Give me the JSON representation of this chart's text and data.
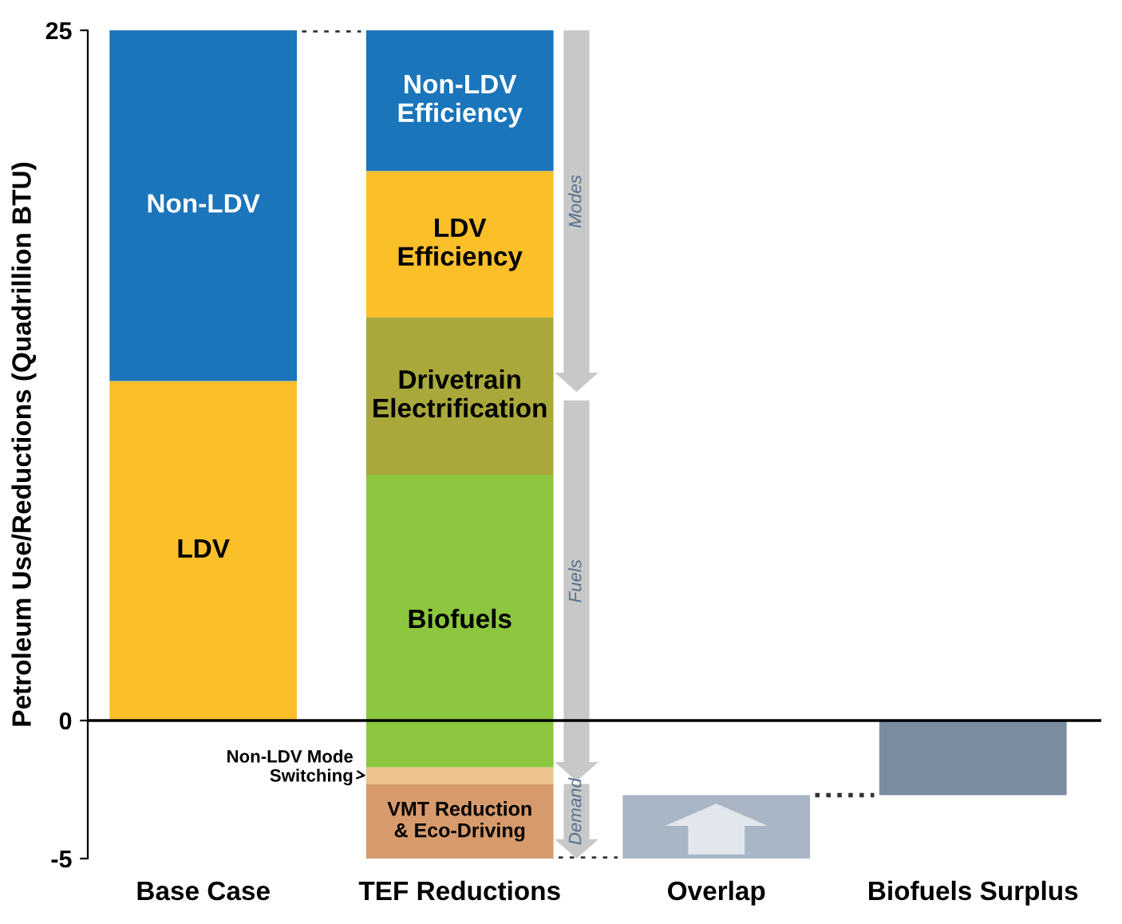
{
  "chart_data": {
    "type": "bar",
    "ylabel": "Petroleum Use/Reductions (Quadrillion BTU)",
    "categories": [
      "Base Case",
      "TEF Reductions",
      "Overlap",
      "Biofuels Surplus"
    ],
    "series": [
      {
        "name": "LDV",
        "color": "#fbbf2a",
        "values": [
          12.3,
          null,
          null,
          null
        ],
        "base": [
          0,
          null,
          null,
          null
        ]
      },
      {
        "name": "Non-LDV",
        "color": "#1a75bb",
        "values": [
          12.7,
          null,
          null,
          null
        ],
        "base": [
          12.3,
          null,
          null,
          null
        ]
      },
      {
        "name": "Non-LDV Efficiency",
        "color": "#1a75bb",
        "values": [
          null,
          5.1,
          null,
          null
        ],
        "base": [
          null,
          19.9,
          null,
          null
        ]
      },
      {
        "name": "LDV Efficiency",
        "color": "#fbbf2a",
        "values": [
          null,
          5.3,
          null,
          null
        ],
        "base": [
          null,
          14.6,
          null,
          null
        ]
      },
      {
        "name": "Drivetrain Electrification",
        "color": "#a9a83a",
        "values": [
          null,
          5.7,
          null,
          null
        ],
        "base": [
          null,
          8.9,
          null,
          null
        ]
      },
      {
        "name": "Biofuels",
        "color": "#8dc63f",
        "values": [
          null,
          10.6,
          null,
          null
        ],
        "base": [
          null,
          -1.7,
          null,
          null
        ]
      },
      {
        "name": "Non-LDV Mode Switching",
        "color": "#ecc38e",
        "values": [
          null,
          0.6,
          null,
          null
        ],
        "base": [
          null,
          -2.3,
          null,
          null
        ]
      },
      {
        "name": "VMT Reduction & Eco-Driving",
        "color": "#d69a6c",
        "values": [
          null,
          2.7,
          null,
          null
        ],
        "base": [
          null,
          -5,
          null,
          null
        ]
      },
      {
        "color": "#a9b6c6",
        "values": [
          null,
          null,
          2.3,
          null
        ],
        "base": [
          null,
          null,
          -5,
          null
        ]
      },
      {
        "color": "#7b8ca1",
        "values": [
          null,
          null,
          null,
          -2.7
        ],
        "base": [
          null,
          null,
          null,
          0
        ]
      }
    ],
    "annotations": [
      "Modes",
      "Fuels",
      "Demand"
    ],
    "ref_lines": [
      {
        "axis": "y",
        "value": 0,
        "color": "#000000"
      }
    ],
    "ylim": [
      -5,
      25
    ],
    "yticks": [
      -5,
      0,
      25
    ],
    "grid": false
  }
}
